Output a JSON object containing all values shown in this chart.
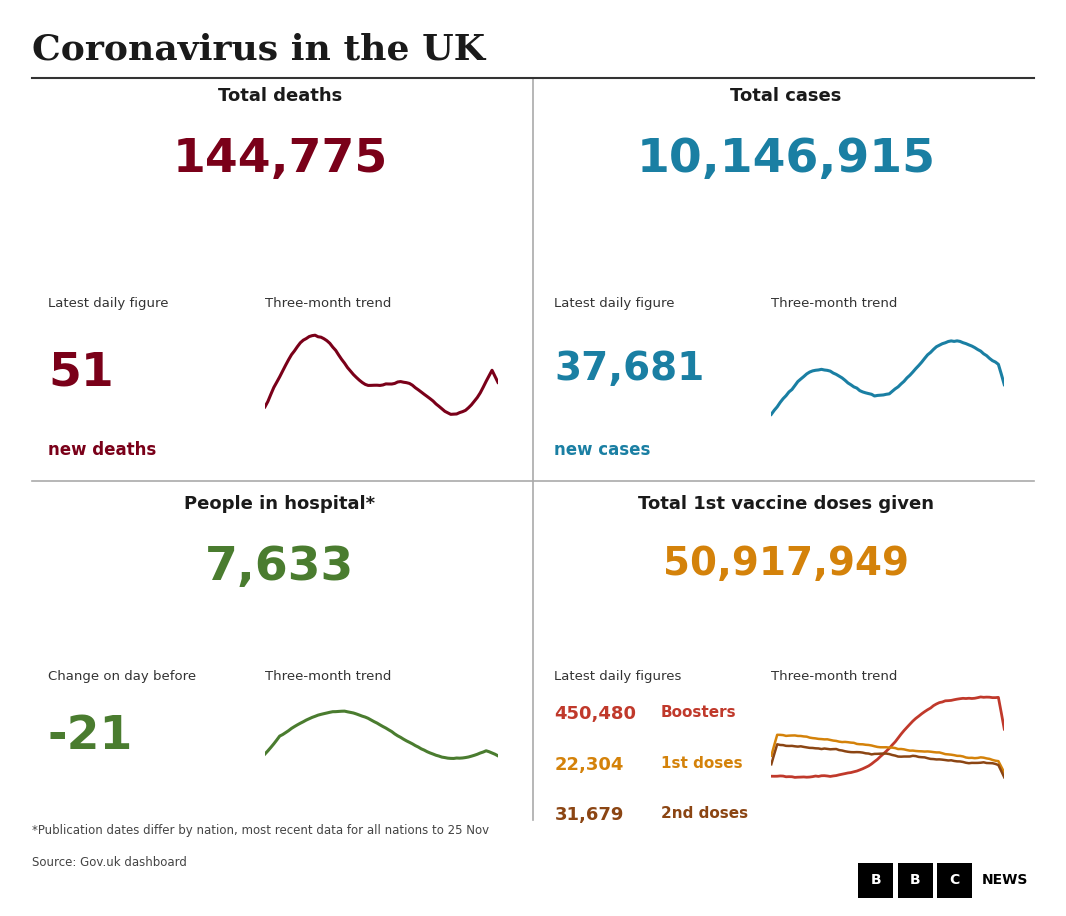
{
  "title": "Coronavirus in the UK",
  "bg_color": "#ffffff",
  "title_color": "#1a1a1a",
  "footnote1": "*Publication dates differ by nation, most recent data for all nations to 25 Nov",
  "footnote2": "Source: Gov.uk dashboard",
  "panels": [
    {
      "header": "Total deaths",
      "main_value": "144,775",
      "main_color": "#7a0019",
      "sub_label": "Latest daily figure",
      "sub_value": "51",
      "sub_value_color": "#7a0019",
      "sub_text": "new deaths",
      "sub_text_color": "#7a0019",
      "trend_label": "Three-month trend",
      "trend_color": "#7a0019",
      "extra_labels": null
    },
    {
      "header": "Total cases",
      "main_value": "10,146,915",
      "main_color": "#1a7fa3",
      "sub_label": "Latest daily figure",
      "sub_value": "37,681",
      "sub_value_color": "#1a7fa3",
      "sub_text": "new cases",
      "sub_text_color": "#1a7fa3",
      "trend_label": "Three-month trend",
      "trend_color": "#1a7fa3",
      "extra_labels": null
    },
    {
      "header": "People in hospital*",
      "main_value": "7,633",
      "main_color": "#4a7c2f",
      "sub_label": "Change on day before",
      "sub_value": "-21",
      "sub_value_color": "#4a7c2f",
      "sub_text": null,
      "sub_text_color": null,
      "trend_label": "Three-month trend",
      "trend_color": "#4a7c2f",
      "extra_labels": null
    },
    {
      "header": "Total 1st vaccine doses given",
      "main_value": "50,917,949",
      "main_color": "#d4820a",
      "sub_label": "Latest daily figures",
      "sub_value": null,
      "sub_value_color": null,
      "sub_text": null,
      "sub_text_color": null,
      "trend_label": "Three-month trend",
      "trend_color": "#8B0000",
      "extra_labels": [
        {
          "value": "450,480",
          "label": "Boosters",
          "value_color": "#c0392b",
          "label_color": "#c0392b"
        },
        {
          "value": "22,304",
          "label": "1st doses",
          "value_color": "#d4820a",
          "label_color": "#d4820a"
        },
        {
          "value": "31,679",
          "label": "2nd doses",
          "value_color": "#8B4513",
          "label_color": "#8B4513"
        }
      ]
    }
  ]
}
